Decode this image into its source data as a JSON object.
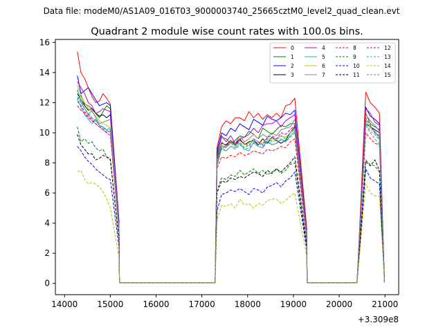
{
  "header": {
    "file_line": "Data file: modeM0/AS1A09_016T03_9000003740_25665cztM0_level2_quad_clean.evt"
  },
  "chart_data": {
    "type": "line",
    "title": "Quadrant 2 module wise count rates with 100.0s bins.",
    "xlabel": "",
    "ylabel": "",
    "x_offset_label": "+3.309e8",
    "xlim": [
      13800,
      21300
    ],
    "ylim": [
      -0.75,
      16.2
    ],
    "x_ticks": [
      14000,
      15000,
      16000,
      17000,
      18000,
      19000,
      20000,
      21000
    ],
    "y_ticks": [
      0,
      2,
      4,
      6,
      8,
      10,
      12,
      14,
      16
    ],
    "legend_position": "top-right",
    "legend_ncol": 4,
    "series": [
      {
        "name": "0",
        "color": "#ff0000",
        "dashed": false,
        "seg1": [
          15.4,
          14.0,
          13.6,
          13.0,
          12.4,
          12.0,
          12.1,
          12.6,
          12.3,
          11.9
        ],
        "seg2": [
          9.0,
          10.4,
          10.8,
          10.6,
          11.0,
          11.0,
          10.8,
          11.4,
          11.0,
          11.3,
          10.9,
          11.2,
          11.0,
          11.3,
          11.0,
          11.8,
          11.9,
          12.3
        ],
        "seg3": [
          12.7,
          12.0,
          11.7,
          11.3
        ]
      },
      {
        "name": "1",
        "color": "#008000",
        "dashed": false,
        "seg1": [
          12.2,
          12.5,
          11.9,
          11.8,
          11.6,
          11.3,
          11.0,
          11.4,
          11.8,
          11.6
        ],
        "seg2": [
          8.6,
          9.7,
          9.6,
          9.3,
          9.5,
          9.8,
          9.7,
          10.1,
          9.9,
          9.6,
          10.3,
          10.1,
          9.9,
          10.2,
          10.5,
          10.4,
          10.6,
          10.6
        ],
        "seg3": [
          11.3,
          10.6,
          10.4,
          10.2
        ]
      },
      {
        "name": "2",
        "color": "#0000ff",
        "dashed": false,
        "seg1": [
          13.8,
          12.6,
          12.8,
          13.0,
          12.6,
          12.2,
          11.8,
          11.9,
          12.0,
          11.8
        ],
        "seg2": [
          8.8,
          10.0,
          9.8,
          10.3,
          10.1,
          10.6,
          10.4,
          10.2,
          10.9,
          10.7,
          10.5,
          11.1,
          10.9,
          10.8,
          11.0,
          11.3,
          11.2,
          11.5
        ],
        "seg3": [
          11.7,
          11.1,
          10.9,
          10.6
        ]
      },
      {
        "name": "3",
        "color": "#000000",
        "dashed": false,
        "seg1": [
          12.6,
          12.2,
          11.8,
          11.5,
          11.6,
          11.3,
          11.1,
          11.2,
          11.0,
          11.2
        ],
        "seg2": [
          8.2,
          9.3,
          9.2,
          9.5,
          9.2,
          9.6,
          9.2,
          9.4,
          9.5,
          9.2,
          9.6,
          9.3,
          9.7,
          9.5,
          9.3,
          9.5,
          10.0,
          10.4
        ],
        "seg3": [
          10.6,
          10.4,
          10.2,
          10.0
        ]
      },
      {
        "name": "4",
        "color": "#c000c0",
        "dashed": false,
        "seg1": [
          13.4,
          13.0,
          12.6,
          12.0,
          11.8,
          11.3,
          11.4,
          11.6,
          11.5,
          11.4
        ],
        "seg2": [
          8.4,
          9.8,
          9.4,
          9.8,
          9.3,
          9.6,
          9.7,
          9.9,
          10.3,
          10.0,
          10.5,
          10.6,
          10.6,
          10.8,
          10.4,
          10.8,
          11.0,
          11.2
        ],
        "seg3": [
          11.6,
          11.3,
          10.7,
          10.5
        ]
      },
      {
        "name": "5",
        "color": "#00c0c0",
        "dashed": false,
        "seg1": [
          12.3,
          11.7,
          11.2,
          10.9,
          10.6,
          10.9,
          10.5,
          10.4,
          10.2,
          10.3
        ],
        "seg2": [
          7.8,
          9.0,
          8.8,
          9.1,
          9.0,
          9.3,
          8.9,
          8.8,
          9.4,
          9.1,
          9.0,
          9.5,
          9.2,
          9.3,
          9.6,
          9.4,
          9.8,
          10.1
        ],
        "seg3": [
          10.8,
          10.4,
          10.1,
          9.7
        ]
      },
      {
        "name": "6",
        "color": "#c0c000",
        "dashed": false,
        "seg1": [
          13.2,
          12.4,
          12.0,
          11.6,
          11.4,
          11.1,
          10.8,
          10.6,
          10.5,
          10.3
        ],
        "seg2": [
          8.0,
          9.2,
          9.0,
          9.4,
          9.1,
          9.5,
          9.2,
          9.3,
          9.6,
          9.4,
          9.3,
          9.7,
          9.5,
          9.6,
          9.8,
          9.7,
          10.0,
          10.3
        ],
        "seg3": [
          10.9,
          10.3,
          10.0,
          9.6
        ]
      },
      {
        "name": "7",
        "color": "#808080",
        "dashed": false,
        "seg1": [
          12.9,
          12.0,
          11.6,
          11.2,
          11.5,
          11.0,
          10.6,
          10.7,
          10.8,
          10.9
        ],
        "seg2": [
          8.3,
          9.4,
          9.1,
          9.5,
          9.3,
          9.8,
          9.4,
          9.6,
          9.9,
          9.6,
          9.9,
          9.7,
          10.0,
          9.8,
          10.2,
          10.3,
          10.4,
          10.9
        ],
        "seg3": [
          11.2,
          10.8,
          10.5,
          10.1
        ]
      },
      {
        "name": "8",
        "color": "#ff0000",
        "dashed": true,
        "seg1": [
          11.8,
          11.5,
          11.3,
          11.0,
          10.8,
          10.6,
          10.4,
          10.2,
          10.0,
          9.8
        ],
        "seg2": [
          7.6,
          8.4,
          8.3,
          8.5,
          8.4,
          8.7,
          8.5,
          8.6,
          8.8,
          8.7,
          8.6,
          8.9,
          8.8,
          8.9,
          9.1,
          9.0,
          9.4,
          9.6
        ],
        "seg3": [
          10.0,
          9.6,
          9.3,
          9.2
        ]
      },
      {
        "name": "9",
        "color": "#008000",
        "dashed": true,
        "seg1": [
          10.4,
          9.4,
          9.6,
          9.3,
          9.4,
          9.0,
          8.8,
          8.9,
          8.4,
          8.3
        ],
        "seg2": [
          6.2,
          7.0,
          6.9,
          7.2,
          7.1,
          7.5,
          7.2,
          7.4,
          7.6,
          7.3,
          7.5,
          7.2,
          7.4,
          7.6,
          7.3,
          7.5,
          7.9,
          8.0
        ],
        "seg3": [
          8.2,
          7.9,
          7.8,
          7.4
        ]
      },
      {
        "name": "10",
        "color": "#0000ff",
        "dashed": true,
        "seg1": [
          9.1,
          8.8,
          8.4,
          8.1,
          7.9,
          7.6,
          7.4,
          7.2,
          7.0,
          6.9
        ],
        "seg2": [
          4.8,
          5.9,
          6.0,
          6.2,
          6.1,
          6.3,
          6.1,
          5.9,
          6.3,
          6.2,
          6.0,
          6.4,
          6.5,
          6.7,
          6.4,
          6.8,
          7.0,
          7.4
        ],
        "seg3": [
          7.6,
          7.0,
          6.8,
          6.6
        ]
      },
      {
        "name": "11",
        "color": "#000000",
        "dashed": true,
        "seg1": [
          9.9,
          9.2,
          8.9,
          8.6,
          8.6,
          8.2,
          8.3,
          8.5,
          8.4,
          8.2
        ],
        "seg2": [
          6.0,
          6.8,
          6.7,
          7.0,
          6.9,
          7.1,
          7.0,
          7.2,
          7.4,
          7.3,
          7.1,
          7.5,
          7.3,
          7.6,
          7.4,
          7.7,
          8.0,
          8.4
        ],
        "seg3": [
          8.1,
          7.8,
          8.2,
          7.5
        ]
      },
      {
        "name": "12",
        "color": "#c000c0",
        "dashed": true,
        "seg1": [
          12.1,
          11.8,
          11.4,
          11.1,
          10.9,
          10.6,
          10.4,
          10.2,
          10.0,
          10.1
        ],
        "seg2": [
          7.9,
          9.0,
          9.1,
          9.4,
          9.2,
          9.5,
          9.3,
          9.1,
          9.6,
          9.4,
          9.2,
          9.7,
          9.8,
          9.6,
          10.0,
          9.9,
          10.2,
          10.5
        ],
        "seg3": [
          11.0,
          10.5,
          10.0,
          9.8
        ]
      },
      {
        "name": "13",
        "color": "#00c0c0",
        "dashed": true,
        "seg1": [
          12.8,
          12.2,
          11.6,
          11.3,
          11.0,
          10.8,
          10.5,
          10.3,
          10.1,
          10.2
        ],
        "seg2": [
          8.1,
          9.1,
          9.0,
          9.3,
          9.1,
          9.4,
          9.0,
          9.2,
          9.5,
          9.3,
          9.1,
          9.6,
          9.4,
          9.5,
          9.8,
          9.6,
          10.0,
          10.2
        ],
        "seg3": [
          10.7,
          10.1,
          9.9,
          9.5
        ]
      },
      {
        "name": "14",
        "color": "#c0c000",
        "dashed": true,
        "seg1": [
          7.4,
          7.5,
          6.9,
          6.6,
          6.7,
          6.6,
          6.4,
          6.1,
          5.6,
          5.0
        ],
        "seg2": [
          4.2,
          5.2,
          5.1,
          5.3,
          5.0,
          5.6,
          5.2,
          5.3,
          5.0,
          5.3,
          5.2,
          5.5,
          5.6,
          5.6,
          5.3,
          5.5,
          5.8,
          6.0
        ],
        "seg3": [
          6.6,
          6.0,
          5.8,
          5.8
        ]
      },
      {
        "name": "15",
        "color": "#808080",
        "dashed": true,
        "seg1": [
          12.4,
          12.0,
          11.6,
          11.2,
          11.0,
          10.8,
          10.5,
          10.3,
          10.2,
          10.0
        ],
        "seg2": [
          7.9,
          8.9,
          8.8,
          9.1,
          8.9,
          9.2,
          8.9,
          9.0,
          9.3,
          9.1,
          9.0,
          9.4,
          9.2,
          9.3,
          9.5,
          9.4,
          9.7,
          10.0
        ],
        "seg3": [
          10.5,
          10.0,
          9.6,
          9.2
        ]
      }
    ],
    "segment_x": {
      "seg1_start": 14280,
      "seg1_step": 80,
      "drop1": 15190,
      "zero_from": 15200,
      "zero_to": 17290,
      "seg2_start": 17330,
      "seg2_step": 100,
      "drop2": 19290,
      "zero2_from": 19300,
      "zero2_to": 20390,
      "seg3_start": 20580,
      "seg3_step": 100,
      "drop3": 20990,
      "zero_value": 0.05
    }
  }
}
